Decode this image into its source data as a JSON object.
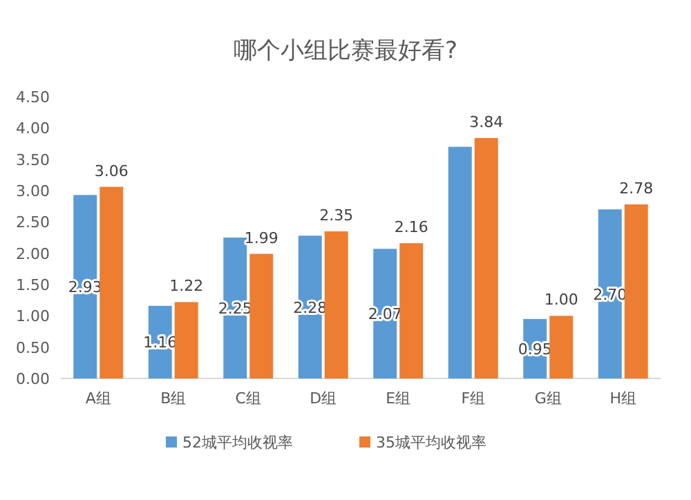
{
  "chart_data": {
    "type": "bar",
    "title": "哪个小组比赛最好看?",
    "categories": [
      "A组",
      "B组",
      "C组",
      "D组",
      "E组",
      "F组",
      "G组",
      "H组"
    ],
    "series": [
      {
        "name": "52城平均收视率",
        "color": "#5b9bd5",
        "values": [
          2.93,
          1.16,
          2.25,
          2.28,
          2.07,
          3.7,
          0.95,
          2.7
        ],
        "value_labels": [
          "2.93",
          "1.16",
          "2.25",
          "2.28",
          "2.07",
          null,
          "0.95",
          "2.70"
        ]
      },
      {
        "name": "35城平均收视率",
        "color": "#ed7d31",
        "values": [
          3.06,
          1.22,
          1.99,
          2.35,
          2.16,
          3.84,
          1.0,
          2.78
        ],
        "value_labels": [
          "3.06",
          "1.22",
          "1.99",
          "2.35",
          "2.16",
          "3.84",
          "1.00",
          "2.78"
        ]
      }
    ],
    "ylim": [
      0,
      4.5
    ],
    "yticks": [
      {
        "value": 0,
        "label": "0.00"
      },
      {
        "value": 0.5,
        "label": "0.50"
      },
      {
        "value": 1,
        "label": "1.00"
      },
      {
        "value": 1.5,
        "label": "1.50"
      },
      {
        "value": 2,
        "label": "2.00"
      },
      {
        "value": 2.5,
        "label": "2.50"
      },
      {
        "value": 3,
        "label": "3.00"
      },
      {
        "value": 3.5,
        "label": "3.50"
      },
      {
        "value": 4,
        "label": "4.00"
      },
      {
        "value": 4.5,
        "label": "4.50"
      }
    ],
    "legend": "bottom"
  }
}
